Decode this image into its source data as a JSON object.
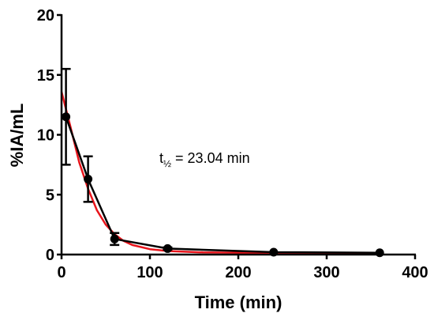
{
  "chart_data": {
    "type": "line",
    "xlabel": "Time (min)",
    "ylabel": "%IA/mL",
    "xlim": [
      0,
      400
    ],
    "ylim": [
      0,
      20
    ],
    "xticks": [
      "0",
      "100",
      "200",
      "300",
      "400"
    ],
    "yticks": [
      "0",
      "5",
      "10",
      "15",
      "20"
    ],
    "grid": false,
    "annotation": {
      "prefix": "t",
      "subscript": "½",
      "text": " = 23.04 min"
    },
    "series": [
      {
        "kind": "measured",
        "color": "#000000",
        "marker": "circle",
        "x": [
          5,
          30,
          60,
          120,
          240,
          360
        ],
        "y": [
          11.5,
          6.3,
          1.3,
          0.5,
          0.2,
          0.15
        ],
        "error": [
          4.0,
          1.9,
          0.5,
          0.1,
          0.05,
          0.05
        ]
      },
      {
        "kind": "fit",
        "color": "#e8141b",
        "x": [
          0,
          10,
          20,
          30,
          40,
          50,
          60,
          70,
          80,
          100,
          120,
          160,
          200,
          240,
          280,
          320,
          360
        ],
        "y": [
          13.6,
          10.7,
          7.7,
          5.5,
          3.7,
          2.5,
          1.7,
          1.15,
          0.8,
          0.45,
          0.3,
          0.18,
          0.15,
          0.14,
          0.13,
          0.12,
          0.12
        ]
      }
    ]
  }
}
